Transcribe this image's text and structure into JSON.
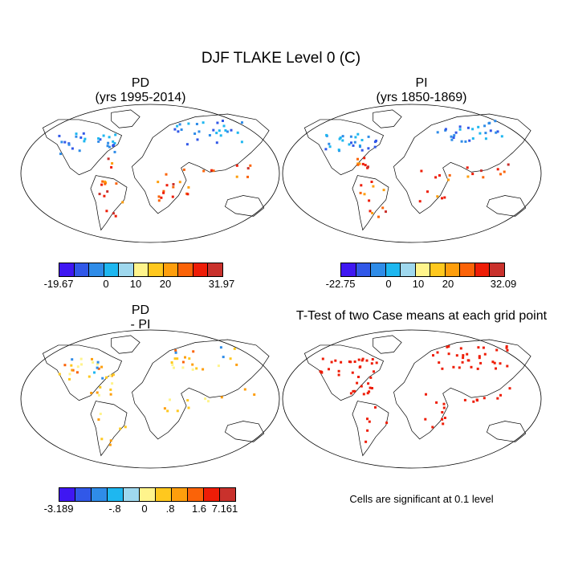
{
  "title": "DJF TLAKE Level 0 (C)",
  "panels": [
    {
      "id": "pd",
      "title_line1": "PD",
      "title_line2": "(yrs 1995-2014)"
    },
    {
      "id": "pi",
      "title_line1": "PI",
      "title_line2": "(yrs 1850-1869)"
    },
    {
      "id": "diff",
      "title_line1": "PD",
      "title_line2": "- PI"
    },
    {
      "id": "ttest",
      "title_line1": "T-Test of two Case means at each grid point",
      "title_line2": ""
    }
  ],
  "colorbars": [
    {
      "id": "pd",
      "labels": [
        "-19.67",
        "0",
        "10",
        "20",
        "31.97"
      ]
    },
    {
      "id": "pi",
      "labels": [
        "-22.75",
        "0",
        "10",
        "20",
        "32.09"
      ]
    },
    {
      "id": "diff",
      "labels": [
        "-3.189",
        "-.8",
        "0",
        ".8",
        "1.6",
        "7.161"
      ]
    }
  ],
  "colors": {
    "abs_palette": [
      "#3f17f2",
      "#3158e8",
      "#2f8ce8",
      "#1eb7f0",
      "#9fd8ee",
      "#fff48c",
      "#ffc81e",
      "#fe9e0c",
      "#fb6308",
      "#ee1d07",
      "#c9312c"
    ],
    "diff_palette": [
      "#3f17f2",
      "#3158e8",
      "#2f8ce8",
      "#1eb7f0",
      "#9fd8ee",
      "#fff48c",
      "#ffc81e",
      "#fe9e0c",
      "#fb6308",
      "#ee1d07",
      "#c9312c"
    ],
    "significant": "#ee1d07"
  },
  "note": "Cells are significant at 0.1 level"
}
